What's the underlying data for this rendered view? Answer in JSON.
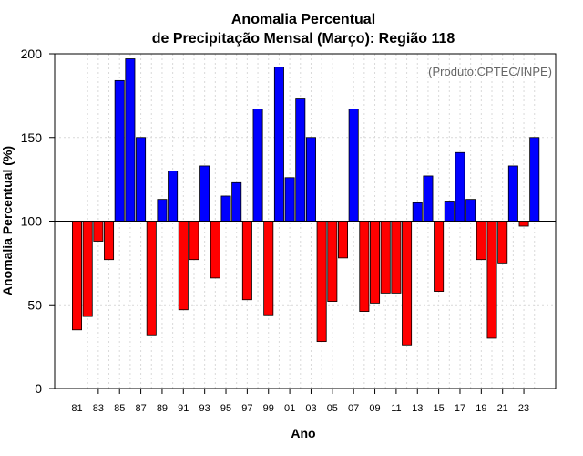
{
  "chart_data": {
    "type": "bar",
    "title_line1": "Anomalia Percentual",
    "title_line2": "de Precipitação Mensal (Março): Região 118",
    "xlabel": "Ano",
    "ylabel": "Anomalia Percentual (%)",
    "credit": "(Produto:CPTEC/INPE)",
    "baseline": 100,
    "ylim": [
      0,
      200
    ],
    "yticks": [
      0,
      50,
      100,
      150,
      200
    ],
    "xtick_labels": [
      "81",
      "83",
      "85",
      "87",
      "89",
      "91",
      "93",
      "95",
      "97",
      "99",
      "01",
      "03",
      "05",
      "07",
      "09",
      "11",
      "13",
      "15",
      "17",
      "19",
      "21",
      "23"
    ],
    "categories": [
      "1981",
      "1982",
      "1983",
      "1984",
      "1985",
      "1986",
      "1987",
      "1988",
      "1989",
      "1990",
      "1991",
      "1992",
      "1993",
      "1994",
      "1995",
      "1996",
      "1997",
      "1998",
      "1999",
      "2000",
      "2001",
      "2002",
      "2003",
      "2004",
      "2005",
      "2006",
      "2007",
      "2008",
      "2009",
      "2010",
      "2011",
      "2012",
      "2013",
      "2014",
      "2015",
      "2016",
      "2017",
      "2018",
      "2019",
      "2020",
      "2021",
      "2022",
      "2023",
      "2024"
    ],
    "values": [
      35,
      43,
      88,
      77,
      184,
      197,
      150,
      32,
      113,
      130,
      47,
      77,
      133,
      66,
      115,
      123,
      53,
      167,
      44,
      192,
      126,
      173,
      150,
      28,
      52,
      78,
      167,
      46,
      51,
      57,
      57,
      26,
      111,
      127,
      58,
      112,
      141,
      113,
      77,
      30,
      75,
      133,
      97,
      150
    ],
    "colors": {
      "above": "#0000ff",
      "below": "#ff0000"
    },
    "grid": true
  }
}
